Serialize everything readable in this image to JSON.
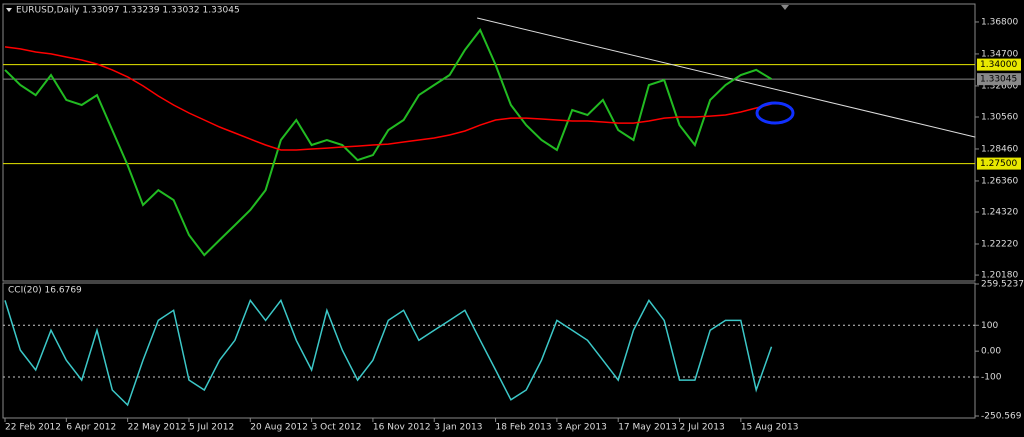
{
  "chart_data": [
    {
      "type": "line",
      "title": "EURUSD,Daily  1.33097 1.33239 1.33032 1.33045",
      "categories": [
        "22 Feb 2012",
        null,
        null,
        null,
        "6 Apr 2012",
        null,
        null,
        null,
        "22 May 2012",
        null,
        null,
        null,
        "5 Jul 2012",
        null,
        null,
        null,
        "20 Aug 2012",
        null,
        null,
        null,
        "3 Oct 2012",
        null,
        null,
        null,
        "16 Nov 2012",
        null,
        null,
        null,
        "3 Jan 2013",
        null,
        null,
        null,
        "18 Feb 2013",
        null,
        null,
        null,
        "3 Apr 2013",
        null,
        null,
        null,
        "17 May 2013",
        null,
        null,
        null,
        "2 Jul 2013",
        null,
        null,
        null,
        "15 Aug 2013",
        null,
        null
      ],
      "series": [
        {
          "color": "#22bb22",
          "values": [
            1.3365,
            1.3266,
            1.32,
            1.3332,
            1.3168,
            1.3135,
            1.32,
            1.297,
            1.274,
            1.2478,
            1.2576,
            1.2511,
            1.2281,
            1.2149,
            1.2248,
            1.2346,
            1.2445,
            1.2576,
            1.2905,
            1.3036,
            1.2872,
            1.2905,
            1.2872,
            1.2773,
            1.2806,
            1.297,
            1.3036,
            1.32,
            1.3266,
            1.3332,
            1.3496,
            1.3627,
            1.3398,
            1.3135,
            1.3003,
            1.2905,
            1.2839,
            1.3102,
            1.3069,
            1.3168,
            1.297,
            1.2905,
            1.3266,
            1.3299,
            1.3003,
            1.2872,
            1.3168,
            1.3266,
            1.3332,
            1.3365,
            1.3305
          ]
        },
        {
          "color": "#ff0000",
          "values": [
            1.3516,
            1.3503,
            1.3483,
            1.347,
            1.345,
            1.343,
            1.3404,
            1.3365,
            1.3319,
            1.326,
            1.3194,
            1.3135,
            1.3082,
            1.3036,
            1.299,
            1.2951,
            1.2911,
            1.2872,
            1.2839,
            1.2839,
            1.2846,
            1.2852,
            1.2859,
            1.2865,
            1.2872,
            1.2878,
            1.2892,
            1.2905,
            1.2918,
            1.2938,
            1.2964,
            1.3003,
            1.3036,
            1.3049,
            1.3049,
            1.3043,
            1.3036,
            1.303,
            1.303,
            1.3023,
            1.3016,
            1.3016,
            1.303,
            1.3049,
            1.3056,
            1.3056,
            1.3062,
            1.3069,
            1.3089,
            1.3115,
            1.3141
          ]
        }
      ],
      "ylim": [
        1.1979,
        1.3798
      ],
      "yticks": [
        {
          "value": 1.368,
          "label": "1.36800"
        },
        {
          "value": 1.347,
          "label": "1.34700"
        },
        {
          "value": 1.326,
          "label": "1.32600"
        },
        {
          "value": 1.3056,
          "label": "1.30560"
        },
        {
          "value": 1.2846,
          "label": "1.28460"
        },
        {
          "value": 1.2636,
          "label": "1.26360"
        },
        {
          "value": 1.2432,
          "label": "1.24320"
        },
        {
          "value": 1.2222,
          "label": "1.22220"
        },
        {
          "value": 1.2018,
          "label": "1.20180"
        }
      ],
      "levels": [
        {
          "value": 1.34,
          "label": "1.34000",
          "color": "#e8e800"
        },
        {
          "value": 1.275,
          "label": "1.27500",
          "color": "#e8e800"
        },
        {
          "value": 1.33045,
          "label": "1.33045",
          "color": "#888888"
        }
      ],
      "trendline": {
        "x": [
          30.8,
          63.3
        ],
        "values": [
          1.3706,
          1.2924
        ],
        "color": "#dddddd"
      }
    },
    {
      "type": "line",
      "title": "CCI(20) 16.6769",
      "series": [
        {
          "color": "#3cc8c8",
          "values": [
            196,
            4,
            -73,
            81,
            -35,
            -112,
            81,
            -150,
            -208,
            -35,
            119,
            158,
            -112,
            -150,
            -35,
            42,
            196,
            119,
            196,
            42,
            -73,
            158,
            4,
            -112,
            -35,
            119,
            158,
            42,
            81,
            119,
            158,
            42,
            -73,
            -188,
            -150,
            -35,
            119,
            81,
            42,
            -35,
            -112,
            81,
            196,
            119,
            -112,
            -112,
            81,
            119,
            119,
            -150,
            16.6769
          ]
        }
      ],
      "ylim": [
        -250.569,
        259.5237
      ],
      "yticks": [
        259.5237,
        100,
        {
          "value": 0,
          "label": "0.00"
        },
        -100,
        -250.569
      ],
      "levels": [
        100,
        -100
      ]
    }
  ]
}
